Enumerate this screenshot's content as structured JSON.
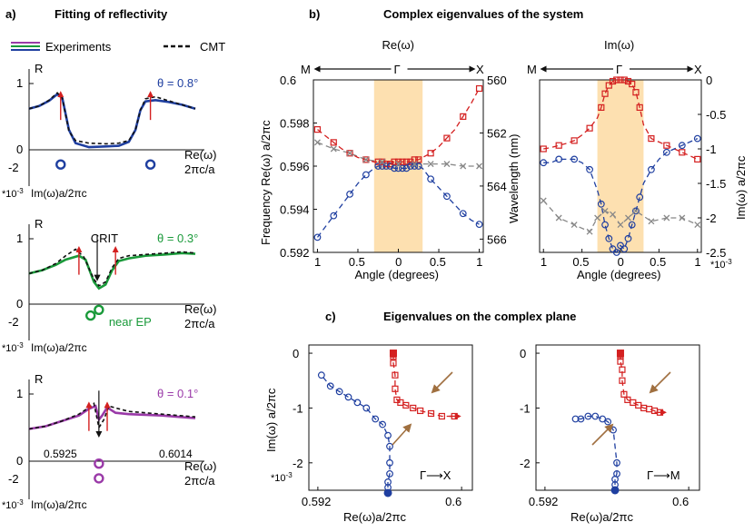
{
  "panel_a": {
    "label": "a)",
    "title": "Fitting of reflectivity",
    "legend": {
      "experiments": "Experiments",
      "cmt": "CMT"
    },
    "colors": {
      "blue": "#1f3fa0",
      "green": "#1a9a3a",
      "purple": "#9a3aa8",
      "red": "#d42020",
      "black": "#111111"
    },
    "subplots": [
      {
        "theta": "θ = 0.8°",
        "color": "#1f3fa0",
        "r_label": "R",
        "tick_1": "1",
        "tick_0": "0",
        "tick_m2": "-2",
        "scale": "*10-3",
        "xlabel_top": "Re(ω)",
        "xlabel_bottom": "2πc/a",
        "im_label": "Im(ω)a/2πc",
        "exp_curve": [
          [
            0,
            0.62
          ],
          [
            0.06,
            0.66
          ],
          [
            0.12,
            0.74
          ],
          [
            0.17,
            0.84
          ],
          [
            0.2,
            0.78
          ],
          [
            0.24,
            0.3
          ],
          [
            0.28,
            0.1
          ],
          [
            0.36,
            0.04
          ],
          [
            0.46,
            0.05
          ],
          [
            0.54,
            0.06
          ],
          [
            0.6,
            0.12
          ],
          [
            0.64,
            0.3
          ],
          [
            0.67,
            0.6
          ],
          [
            0.7,
            0.73
          ],
          [
            0.76,
            0.75
          ],
          [
            0.84,
            0.72
          ],
          [
            0.92,
            0.68
          ],
          [
            1,
            0.62
          ]
        ],
        "cmt_curve": [
          [
            0,
            0.62
          ],
          [
            0.06,
            0.66
          ],
          [
            0.12,
            0.75
          ],
          [
            0.17,
            0.86
          ],
          [
            0.2,
            0.78
          ],
          [
            0.24,
            0.28
          ],
          [
            0.28,
            0.14
          ],
          [
            0.36,
            0.1
          ],
          [
            0.46,
            0.09
          ],
          [
            0.54,
            0.1
          ],
          [
            0.6,
            0.14
          ],
          [
            0.64,
            0.3
          ],
          [
            0.67,
            0.6
          ],
          [
            0.7,
            0.77
          ],
          [
            0.76,
            0.8
          ],
          [
            0.84,
            0.74
          ],
          [
            0.92,
            0.68
          ],
          [
            1,
            0.62
          ]
        ],
        "arrows": [
          0.19,
          0.73
        ],
        "eigen_points": [
          [
            0.19,
            -0.9
          ],
          [
            0.73,
            -0.9
          ]
        ]
      },
      {
        "theta": "θ = 0.3°",
        "color": "#1a9a3a",
        "r_label": "R",
        "tick_1": "1",
        "tick_0": "0",
        "tick_m2": "-2",
        "scale": "*10-3",
        "xlabel_top": "Re(ω)",
        "xlabel_bottom": "2πc/a",
        "im_label": "Im(ω)a/2πc",
        "annotation": "CRIT",
        "near_ep": "near EP",
        "exp_curve": [
          [
            0,
            0.47
          ],
          [
            0.08,
            0.52
          ],
          [
            0.16,
            0.6
          ],
          [
            0.22,
            0.68
          ],
          [
            0.3,
            0.74
          ],
          [
            0.34,
            0.68
          ],
          [
            0.39,
            0.34
          ],
          [
            0.42,
            0.24
          ],
          [
            0.46,
            0.3
          ],
          [
            0.5,
            0.52
          ],
          [
            0.54,
            0.66
          ],
          [
            0.6,
            0.7
          ],
          [
            0.7,
            0.74
          ],
          [
            0.82,
            0.76
          ],
          [
            0.92,
            0.78
          ],
          [
            1,
            0.77
          ]
        ],
        "cmt_curve": [
          [
            0,
            0.47
          ],
          [
            0.08,
            0.52
          ],
          [
            0.16,
            0.62
          ],
          [
            0.22,
            0.74
          ],
          [
            0.28,
            0.84
          ],
          [
            0.33,
            0.72
          ],
          [
            0.39,
            0.38
          ],
          [
            0.42,
            0.28
          ],
          [
            0.46,
            0.34
          ],
          [
            0.5,
            0.56
          ],
          [
            0.54,
            0.7
          ],
          [
            0.6,
            0.74
          ],
          [
            0.7,
            0.76
          ],
          [
            0.82,
            0.78
          ],
          [
            0.92,
            0.8
          ],
          [
            1,
            0.78
          ]
        ],
        "arrows": [
          0.3,
          0.52
        ],
        "crit_arrow": 0.41,
        "eigen_points": [
          [
            0.37,
            -0.7
          ],
          [
            0.42,
            -0.35
          ]
        ]
      },
      {
        "theta": "θ = 0.1°",
        "color": "#9a3aa8",
        "r_label": "R",
        "tick_1": "1",
        "tick_0": "0",
        "tick_m2": "-2",
        "scale": "*10-3",
        "xlabel_top": "Re(ω)",
        "xlabel_bottom": "2πc/a",
        "im_label": "Im(ω)a/2πc",
        "x_min_label": "0.5925",
        "x_max_label": "0.6014",
        "exp_curve": [
          [
            0,
            0.48
          ],
          [
            0.1,
            0.52
          ],
          [
            0.2,
            0.6
          ],
          [
            0.3,
            0.68
          ],
          [
            0.36,
            0.78
          ],
          [
            0.4,
            0.82
          ],
          [
            0.42,
            0.62
          ],
          [
            0.44,
            0.68
          ],
          [
            0.47,
            0.8
          ],
          [
            0.52,
            0.72
          ],
          [
            0.6,
            0.7
          ],
          [
            0.7,
            0.69
          ],
          [
            0.8,
            0.68
          ],
          [
            0.9,
            0.66
          ],
          [
            1,
            0.64
          ]
        ],
        "cmt_curve": [
          [
            0,
            0.48
          ],
          [
            0.1,
            0.52
          ],
          [
            0.2,
            0.6
          ],
          [
            0.3,
            0.7
          ],
          [
            0.36,
            0.8
          ],
          [
            0.39,
            0.86
          ],
          [
            0.42,
            0.5
          ],
          [
            0.45,
            0.62
          ],
          [
            0.48,
            0.82
          ],
          [
            0.54,
            0.78
          ],
          [
            0.6,
            0.74
          ],
          [
            0.7,
            0.72
          ],
          [
            0.8,
            0.7
          ],
          [
            0.9,
            0.68
          ],
          [
            1,
            0.66
          ]
        ],
        "arrows": [
          0.36,
          0.47
        ],
        "crit_arrow": 0.42,
        "eigen_points": [
          [
            0.42,
            -0.15
          ],
          [
            0.42,
            -1.05
          ]
        ]
      }
    ]
  },
  "panel_b": {
    "label": "b)",
    "title": "Complex eigenvalues of the system",
    "left": {
      "title": "Re(ω)",
      "sym_m": "M",
      "sym_g": "Γ",
      "sym_x": "X",
      "ylabel_left": "Frequency  Re(ω) a/2πc",
      "ylabel_right": "Wavelength (nm)",
      "xlabel": "Angle (degrees)",
      "xticks": [
        "1",
        "0.5",
        "0",
        "0.5",
        "1"
      ],
      "yticks_left": [
        "0.6",
        "0.598",
        "0.596",
        "0.594",
        "0.592"
      ],
      "yticks_right": [
        "560",
        "562",
        "564",
        "566"
      ],
      "chart_data": {
        "type": "scatter",
        "x": [
          -1.0,
          -0.9,
          -0.8,
          -0.7,
          -0.6,
          -0.5,
          -0.4,
          -0.3,
          -0.25,
          -0.2,
          -0.15,
          -0.1,
          -0.05,
          0.0,
          0.05,
          0.1,
          0.15,
          0.2,
          0.25,
          0.3,
          0.4,
          0.5,
          0.6,
          0.7,
          0.8,
          0.9,
          1.0
        ],
        "red": [
          0.5977,
          0.5974,
          0.5971,
          0.5968,
          0.5966,
          0.5964,
          0.5963,
          0.5962,
          0.5962,
          0.5962,
          0.5961,
          0.5961,
          0.5962,
          0.5962,
          0.5962,
          0.5962,
          0.5962,
          0.5963,
          0.5963,
          0.5964,
          0.5966,
          0.5969,
          0.5973,
          0.5977,
          0.5983,
          0.5989,
          0.5996
        ],
        "blue": [
          0.5927,
          0.5932,
          0.5937,
          0.5942,
          0.5947,
          0.5952,
          0.5956,
          0.5959,
          0.596,
          0.596,
          0.596,
          0.596,
          0.5959,
          0.5959,
          0.5959,
          0.5959,
          0.596,
          0.596,
          0.596,
          0.5959,
          0.5954,
          0.595,
          0.5946,
          0.5942,
          0.5938,
          0.5935,
          0.5933
        ],
        "gray_x": [
          -1.0,
          -0.8,
          -0.6,
          -0.4,
          -0.2,
          0.0,
          0.2,
          0.4,
          0.6,
          0.8,
          1.0
        ],
        "gray": [
          0.5971,
          0.5968,
          0.5966,
          0.5963,
          0.5962,
          0.5961,
          0.5961,
          0.5961,
          0.5961,
          0.596,
          0.596
        ],
        "xlim": [
          -1.05,
          1.05
        ],
        "ylim": [
          0.592,
          0.6
        ],
        "shaded": [
          -0.3,
          0.3
        ]
      }
    },
    "right": {
      "title": "Im(ω)",
      "sym_m": "M",
      "sym_g": "Γ",
      "sym_x": "X",
      "ylabel": "Im(ω)  a/2πc",
      "xlabel": "Angle (degrees)",
      "scale": "*10-3",
      "xticks": [
        "1",
        "0.5",
        "0",
        "0.5",
        "1"
      ],
      "yticks": [
        "0",
        "-0.5",
        "-1",
        "-1.5",
        "-2",
        "-2.5"
      ],
      "chart_data": {
        "type": "scatter",
        "x": [
          -1.0,
          -0.9,
          -0.8,
          -0.7,
          -0.6,
          -0.5,
          -0.4,
          -0.3,
          -0.25,
          -0.2,
          -0.15,
          -0.1,
          -0.05,
          0.0,
          0.05,
          0.1,
          0.15,
          0.2,
          0.25,
          0.3,
          0.4,
          0.5,
          0.6,
          0.7,
          0.8,
          0.9,
          1.0
        ],
        "red": [
          -1.0,
          -0.98,
          -0.95,
          -0.92,
          -0.88,
          -0.8,
          -0.7,
          -0.55,
          -0.4,
          -0.2,
          -0.08,
          -0.02,
          0.0,
          0.0,
          0.0,
          -0.02,
          -0.06,
          -0.18,
          -0.4,
          -0.65,
          -0.85,
          -0.9,
          -0.95,
          -1.0,
          -1.05,
          -1.1,
          -1.15
        ],
        "blue": [
          -1.2,
          -1.2,
          -1.15,
          -1.15,
          -1.15,
          -1.2,
          -1.3,
          -1.6,
          -1.8,
          -2.1,
          -2.3,
          -2.45,
          -2.5,
          -2.4,
          -2.45,
          -2.3,
          -2.1,
          -1.9,
          -1.7,
          -1.5,
          -1.3,
          -1.15,
          -1.05,
          -1.0,
          -0.95,
          -0.9,
          -0.85
        ],
        "gray_x": [
          -1.0,
          -0.8,
          -0.6,
          -0.4,
          -0.3,
          -0.2,
          -0.1,
          0.0,
          0.1,
          0.2,
          0.4,
          0.6,
          0.8,
          1.0
        ],
        "gray": [
          -1.75,
          -2.0,
          -2.1,
          -2.2,
          -2.0,
          -1.9,
          -1.95,
          -2.1,
          -2.0,
          -1.9,
          -2.05,
          -2.0,
          -2.0,
          -2.1
        ],
        "xlim": [
          -1.05,
          1.05
        ],
        "ylim": [
          -2.5,
          0.0
        ],
        "shaded": [
          -0.3,
          0.3
        ]
      }
    }
  },
  "panel_c": {
    "label": "c)",
    "title": "Eigenvalues on the complex plane",
    "ylabel": "Im(ω)  a/2πc",
    "xlabel": "Re(ω)a/2πc",
    "scale": "*10-3",
    "xticks": [
      "0.592",
      "0.6"
    ],
    "yticks": [
      "0",
      "-1",
      "-2"
    ],
    "plots": [
      {
        "direction_label": "Γ⟶X",
        "chart_data": {
          "type": "scatter",
          "xlim": [
            0.5915,
            0.6006
          ],
          "ylim": [
            -2.5,
            0.15
          ],
          "red_x": [
            0.5962,
            0.5962,
            0.5962,
            0.5962,
            0.5963,
            0.5963,
            0.5964,
            0.5966,
            0.5969,
            0.5973,
            0.5977,
            0.5983,
            0.5989,
            0.5996
          ],
          "red_y": [
            0.0,
            -0.02,
            -0.06,
            -0.18,
            -0.4,
            -0.65,
            -0.85,
            -0.9,
            -0.95,
            -1.0,
            -1.05,
            -1.1,
            -1.15,
            -1.15
          ],
          "blue_x": [
            0.5959,
            0.5959,
            0.596,
            0.596,
            0.596,
            0.5959,
            0.5956,
            0.5952,
            0.5947,
            0.5942,
            0.5937,
            0.5932,
            0.5927,
            0.5922
          ],
          "blue_y": [
            -2.45,
            -2.35,
            -2.2,
            -2.0,
            -1.7,
            -1.5,
            -1.3,
            -1.2,
            -1.0,
            -0.9,
            -0.8,
            -0.7,
            -0.6,
            -0.4
          ]
        }
      },
      {
        "direction_label": "Γ⟶M",
        "chart_data": {
          "type": "scatter",
          "xlim": [
            0.5915,
            0.6006
          ],
          "ylim": [
            -2.5,
            0.15
          ],
          "red_x": [
            0.5962,
            0.5962,
            0.5962,
            0.5962,
            0.5963,
            0.5963,
            0.5964,
            0.5966,
            0.5969,
            0.5972,
            0.5975,
            0.5978,
            0.5981,
            0.5984
          ],
          "red_y": [
            0.0,
            -0.02,
            -0.06,
            -0.15,
            -0.3,
            -0.5,
            -0.75,
            -0.85,
            -0.9,
            -0.95,
            -1.0,
            -1.02,
            -1.05,
            -1.08
          ],
          "blue_x": [
            0.5959,
            0.5959,
            0.596,
            0.596,
            0.5958,
            0.5955,
            0.5952,
            0.5948,
            0.5944,
            0.594,
            0.5937
          ],
          "blue_y": [
            -2.4,
            -2.3,
            -2.2,
            -2.0,
            -1.4,
            -1.25,
            -1.2,
            -1.15,
            -1.15,
            -1.2,
            -1.2
          ]
        }
      }
    ]
  }
}
